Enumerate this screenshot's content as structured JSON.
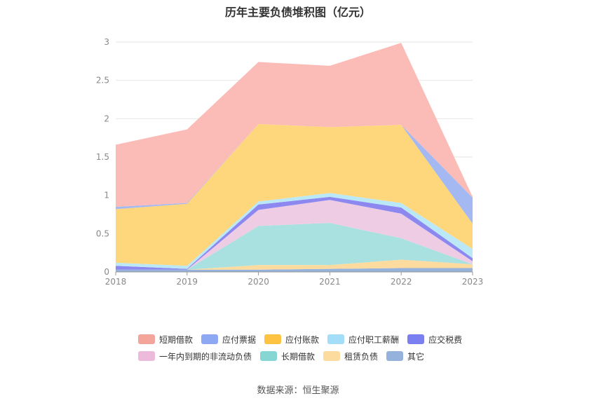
{
  "page": {
    "title": "历年主要负债堆积图（亿元）",
    "source": "数据来源：恒生聚源"
  },
  "chart_data": {
    "type": "area",
    "stacked": true,
    "title": "历年主要负债堆积图（亿元）",
    "x": [
      "2018",
      "2019",
      "2020",
      "2021",
      "2022",
      "2023"
    ],
    "ylim": [
      0,
      3
    ],
    "yticks": [
      "0",
      "0.5",
      "1",
      "1.5",
      "2",
      "2.5",
      "3"
    ],
    "grid": true,
    "legend_position": "bottom",
    "series": [
      {
        "name": "其它",
        "color": "#94b2dc",
        "values": [
          0.03,
          0.03,
          0.03,
          0.04,
          0.05,
          0.05
        ]
      },
      {
        "name": "租赁负债",
        "color": "#fddb9f",
        "values": [
          0,
          0,
          0.06,
          0.05,
          0.11,
          0.05
        ]
      },
      {
        "name": "长期借款",
        "color": "#a8e1e0",
        "values": [
          0,
          0,
          0.51,
          0.55,
          0.28,
          0
        ]
      },
      {
        "name": "一年内到期的非流动负债",
        "color": "#eecde4",
        "values": [
          0,
          0,
          0.21,
          0.3,
          0.32,
          0.04
        ]
      },
      {
        "name": "应交税费",
        "color": "#8c88ef",
        "values": [
          0.05,
          0.01,
          0.07,
          0.04,
          0.08,
          0.04
        ]
      },
      {
        "name": "应付职工薪酬",
        "color": "#bbe8f6",
        "values": [
          0.04,
          0.04,
          0.04,
          0.05,
          0.06,
          0.12
        ]
      },
      {
        "name": "应付账款",
        "color": "#fed77c",
        "values": [
          0.7,
          0.81,
          1.01,
          0.86,
          1.02,
          0.33
        ]
      },
      {
        "name": "应付票据",
        "color": "#a4b8f2",
        "values": [
          0.03,
          0.01,
          0,
          0,
          0,
          0.34
        ]
      },
      {
        "name": "短期借款",
        "color": "#fbbcb7",
        "values": [
          0.81,
          0.96,
          0.81,
          0.8,
          1.07,
          0.01
        ]
      }
    ],
    "legend": [
      {
        "name": "短期借款",
        "color": "#f4a59b"
      },
      {
        "name": "应付票据",
        "color": "#8fa8f3"
      },
      {
        "name": "应付账款",
        "color": "#fec340"
      },
      {
        "name": "应付职工薪酬",
        "color": "#a3ddf7"
      },
      {
        "name": "应交税费",
        "color": "#7c7ff0"
      },
      {
        "name": "一年内到期的非流动负债",
        "color": "#ecbadb"
      },
      {
        "name": "长期借款",
        "color": "#86d6d4"
      },
      {
        "name": "租赁负债",
        "color": "#fddb9f"
      },
      {
        "name": "其它",
        "color": "#94b2dc"
      }
    ]
  }
}
